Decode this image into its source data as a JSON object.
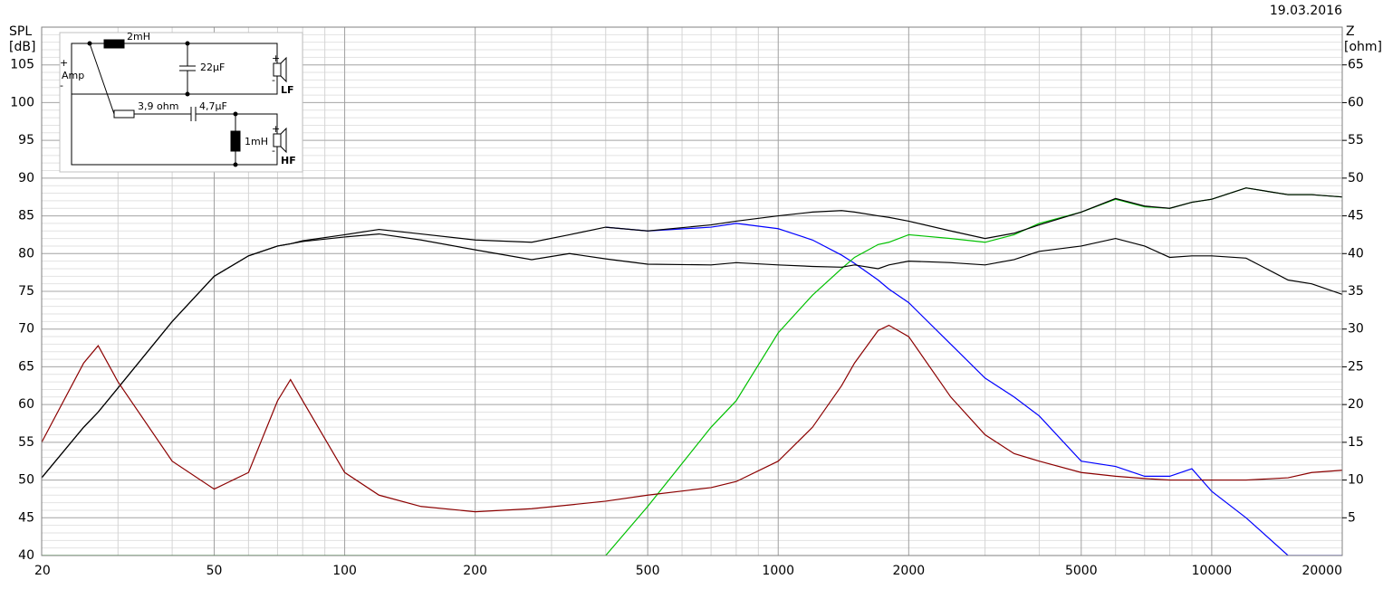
{
  "chart_data": {
    "type": "line",
    "date": "19.03.2016",
    "ylabel": "SPL",
    "yunit": "[dB]",
    "y2label": "Z",
    "y2unit": "[ohm]",
    "log_x": true,
    "grid": true,
    "xlim": [
      20,
      20000
    ],
    "xticks": [
      20,
      50,
      100,
      200,
      500,
      1000,
      2000,
      5000,
      10000,
      20000
    ],
    "xminor": [
      30,
      40,
      60,
      70,
      80,
      90,
      300,
      400,
      600,
      700,
      800,
      900,
      3000,
      4000,
      6000,
      7000,
      8000,
      9000
    ],
    "ylim": [
      40,
      110
    ],
    "yticks": [
      40,
      45,
      50,
      55,
      60,
      65,
      70,
      75,
      80,
      85,
      90,
      95,
      100,
      105
    ],
    "yminor_step": 1,
    "y2lim": [
      0,
      70
    ],
    "y2ticks": [
      5,
      10,
      15,
      20,
      25,
      30,
      35,
      40,
      45,
      50,
      55,
      60,
      65
    ],
    "x": [
      20,
      25,
      27,
      30,
      40,
      50,
      60,
      70,
      75,
      80,
      100,
      120,
      150,
      200,
      270,
      330,
      400,
      500,
      700,
      800,
      1000,
      1200,
      1400,
      1500,
      1700,
      1800,
      2000,
      2500,
      3000,
      3500,
      4000,
      5000,
      6000,
      7000,
      8000,
      9000,
      10000,
      12000,
      15000,
      17000,
      20000
    ],
    "series": [
      {
        "color": "#0000ff",
        "values": [
          null,
          null,
          null,
          null,
          null,
          null,
          null,
          null,
          null,
          null,
          null,
          null,
          null,
          null,
          null,
          null,
          83.5,
          83,
          83.5,
          84,
          83.3,
          81.8,
          79.8,
          78.7,
          76.5,
          75.3,
          73.5,
          68,
          63.5,
          61,
          58.5,
          52.5,
          51.8,
          50.5,
          50.5,
          51.5,
          48.5,
          45,
          40,
          40,
          40
        ]
      },
      {
        "color": "#00c000",
        "values": [
          40,
          40,
          40,
          40,
          40,
          40,
          40,
          40,
          40,
          40,
          40,
          40,
          40,
          40,
          40,
          40,
          40,
          46.5,
          57,
          60.5,
          69.5,
          74.5,
          78,
          79.5,
          81.2,
          81.5,
          82.5,
          82,
          81.5,
          82.5,
          84,
          85.5,
          87.2,
          86.2,
          86,
          86.8,
          87.2,
          88.7,
          87.8,
          87.8,
          87.5
        ]
      },
      {
        "color": "#000000",
        "values": [
          50.3,
          57,
          59,
          62.2,
          71,
          77,
          79.7,
          81,
          81.3,
          81.6,
          82.2,
          82.6,
          81.8,
          80.5,
          79.2,
          80,
          79.3,
          78.6,
          78.5,
          78.8,
          78.5,
          78.3,
          78.2,
          78.5,
          78,
          78.5,
          79,
          78.8,
          78.5,
          79.2,
          80.3,
          81,
          82,
          81,
          79.5,
          79.7,
          79.7,
          79.4,
          76.5,
          76,
          74.6
        ]
      },
      {
        "color": "#000000",
        "values": [
          50.3,
          57,
          59,
          62.2,
          71,
          77,
          79.7,
          81,
          81.3,
          81.7,
          82.5,
          83.2,
          82.6,
          81.8,
          81.5,
          82.5,
          83.5,
          83,
          83.8,
          84.3,
          85,
          85.5,
          85.7,
          85.5,
          85,
          84.8,
          84.3,
          83,
          82,
          82.7,
          83.8,
          85.5,
          87.3,
          86.3,
          86,
          86.8,
          87.2,
          88.7,
          87.8,
          87.8,
          87.5
        ]
      },
      {
        "color": "#8b0000",
        "axis": "y2",
        "values": [
          15,
          25.5,
          27.8,
          23,
          12.5,
          8.8,
          11,
          20.5,
          23.3,
          20.5,
          11,
          8,
          6.5,
          5.8,
          6.2,
          6.7,
          7.2,
          8,
          9,
          9.8,
          12.5,
          17,
          22.5,
          25.5,
          29.8,
          30.5,
          29,
          21,
          16,
          13.5,
          12.5,
          11,
          10.5,
          10.2,
          10,
          10,
          10,
          10,
          10.3,
          11,
          11.3
        ]
      }
    ]
  },
  "schematic": {
    "amp": "Amp",
    "plus": "+",
    "minus": "-",
    "l1": "2mH",
    "c1": "22µF",
    "lf": "LF",
    "r1": "3,9 ohm",
    "c2": "4,7µF",
    "l2": "1mH",
    "hf": "HF"
  }
}
